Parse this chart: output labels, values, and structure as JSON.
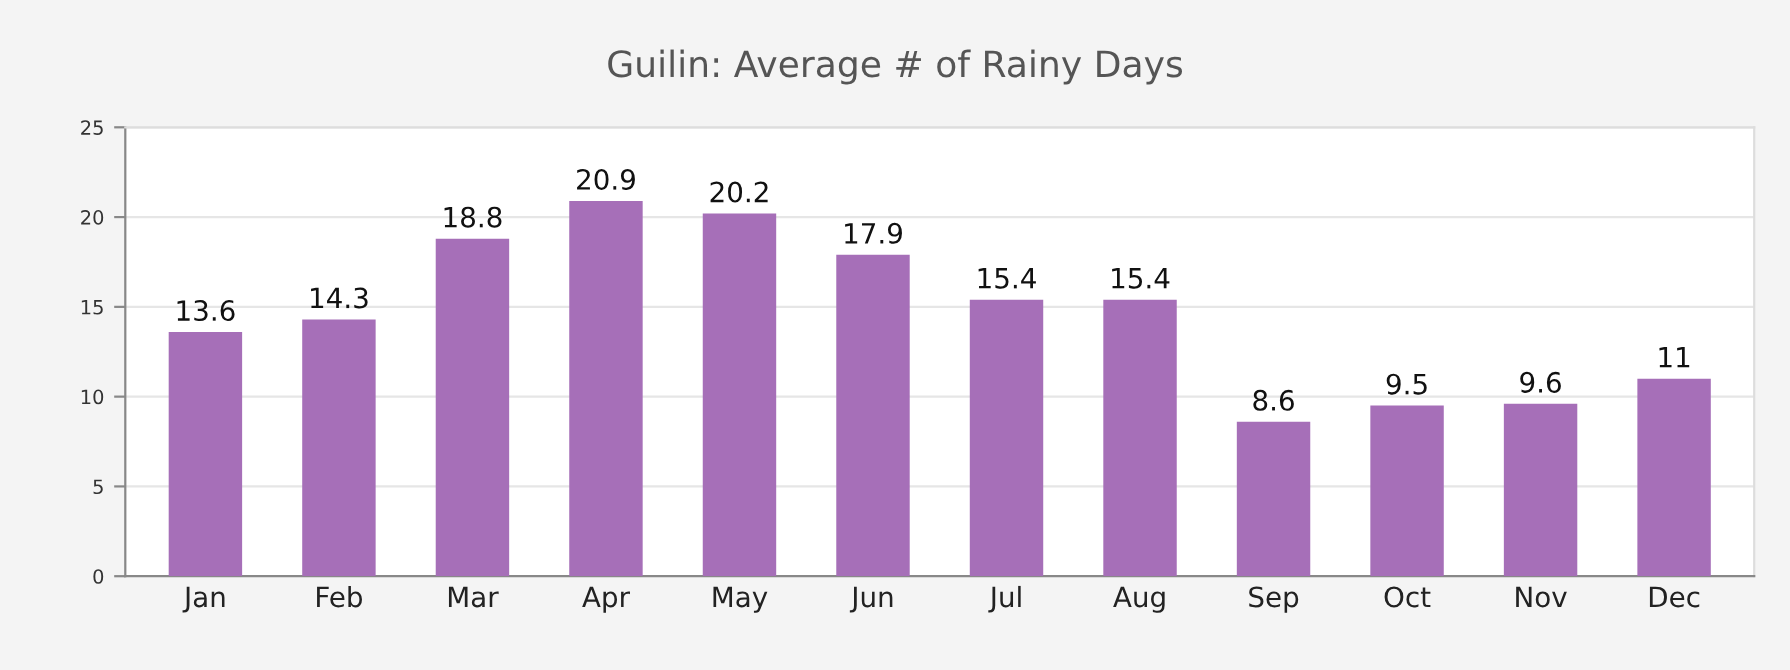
{
  "chart_data": {
    "type": "bar",
    "title": "Guilin: Average # of Rainy Days",
    "categories": [
      "Jan",
      "Feb",
      "Mar",
      "Apr",
      "May",
      "Jun",
      "Jul",
      "Aug",
      "Sep",
      "Oct",
      "Nov",
      "Dec"
    ],
    "values": [
      13.6,
      14.3,
      18.8,
      20.9,
      20.2,
      17.9,
      15.4,
      15.4,
      8.6,
      9.5,
      9.6,
      11
    ],
    "color": "#a66fb8",
    "ylim": [
      0,
      25
    ],
    "yticks": [
      0,
      5,
      10,
      15,
      20,
      25
    ],
    "grid": "y",
    "data_labels": true
  }
}
